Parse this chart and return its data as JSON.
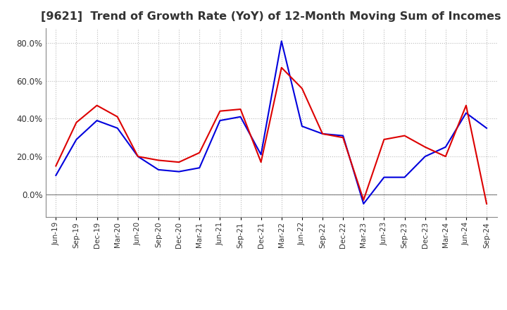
{
  "title": "[9621]  Trend of Growth Rate (YoY) of 12-Month Moving Sum of Incomes",
  "title_fontsize": 11.5,
  "x_labels": [
    "Jun-19",
    "Sep-19",
    "Dec-19",
    "Mar-20",
    "Jun-20",
    "Sep-20",
    "Dec-20",
    "Mar-21",
    "Jun-21",
    "Sep-21",
    "Dec-21",
    "Mar-22",
    "Jun-22",
    "Sep-22",
    "Dec-22",
    "Mar-23",
    "Jun-23",
    "Sep-23",
    "Dec-23",
    "Mar-24",
    "Jun-24",
    "Sep-24"
  ],
  "ordinary_income": [
    0.1,
    0.29,
    0.39,
    0.35,
    0.2,
    0.13,
    0.12,
    0.14,
    0.39,
    0.41,
    0.21,
    0.81,
    0.36,
    0.32,
    0.31,
    -0.05,
    0.09,
    0.09,
    0.2,
    0.25,
    0.43,
    0.35
  ],
  "net_income": [
    0.15,
    0.38,
    0.47,
    0.41,
    0.2,
    0.18,
    0.17,
    0.22,
    0.44,
    0.45,
    0.17,
    0.67,
    0.56,
    0.32,
    0.3,
    -0.03,
    0.29,
    0.31,
    0.25,
    0.2,
    0.47,
    -0.05
  ],
  "ordinary_color": "#0000dd",
  "net_color": "#dd0000",
  "ylim": [
    -0.12,
    0.88
  ],
  "yticks": [
    0.0,
    0.2,
    0.4,
    0.6,
    0.8
  ],
  "ytick_labels": [
    "0.0%",
    "20.0%",
    "40.0%",
    "60.0%",
    "80.0%"
  ],
  "grid_color": "#bbbbbb",
  "background_color": "#ffffff"
}
